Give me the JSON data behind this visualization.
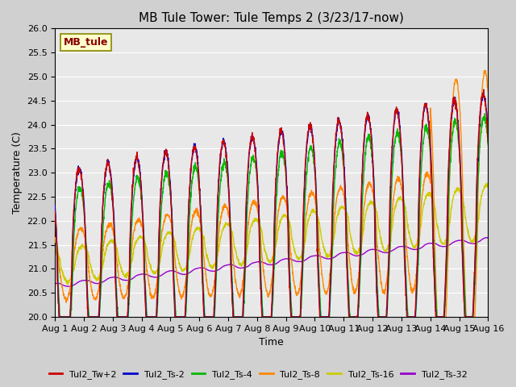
{
  "title": "MB Tule Tower: Tule Temps 2 (3/23/17-now)",
  "xlabel": "Time",
  "ylabel": "Temperature (C)",
  "ylim": [
    20.0,
    26.0
  ],
  "yticks": [
    20.0,
    20.5,
    21.0,
    21.5,
    22.0,
    22.5,
    23.0,
    23.5,
    24.0,
    24.5,
    25.0,
    25.5,
    26.0
  ],
  "xtick_labels": [
    "Aug 1",
    "Aug 2",
    "Aug 3",
    "Aug 4",
    "Aug 5",
    "Aug 6",
    "Aug 7",
    "Aug 8",
    "Aug 9",
    "Aug 10",
    "Aug 11",
    "Aug 12",
    "Aug 13",
    "Aug 14",
    "Aug 15",
    "Aug 16"
  ],
  "n_days": 15,
  "fig_bg_color": "#d0d0d0",
  "plot_bg_color": "#e8e8e8",
  "line_colors": {
    "Tul2_Tw+2": "#cc0000",
    "Tul2_Ts-2": "#0000cc",
    "Tul2_Ts-4": "#00bb00",
    "Tul2_Ts-8": "#ff8800",
    "Tul2_Ts-16": "#cccc00",
    "Tul2_Ts-32": "#9900cc"
  },
  "legend_labels": [
    "Tul2_Tw+2",
    "Tul2_Ts-2",
    "Tul2_Ts-4",
    "Tul2_Ts-8",
    "Tul2_Ts-16",
    "Tul2_Ts-32"
  ],
  "station_label": "MB_tule",
  "station_label_color": "#880000",
  "station_box_color": "#ffffcc",
  "station_box_edge": "#888800"
}
